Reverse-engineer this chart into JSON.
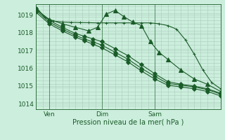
{
  "background_color": "#cceedd",
  "grid_color": "#aaccbb",
  "line_color": "#1a5c28",
  "xlim": [
    0,
    84
  ],
  "ylim": [
    1013.7,
    1019.6
  ],
  "yticks": [
    1014,
    1015,
    1016,
    1017,
    1018,
    1019
  ],
  "xtick_labels": [
    "Ven",
    "Dim",
    "Sam"
  ],
  "xtick_positions": [
    6,
    30,
    54
  ],
  "xlabel": "Pression niveau de la mer( hPa )",
  "vlines": [
    6,
    30,
    54
  ],
  "series": [
    {
      "x": [
        0,
        4,
        8,
        12,
        16,
        20,
        24,
        28,
        32,
        36,
        40,
        44,
        48,
        52,
        56,
        60,
        64,
        68,
        72,
        76,
        80,
        84
      ],
      "y": [
        1019.45,
        1018.85,
        1018.65,
        1018.6,
        1018.58,
        1018.57,
        1018.56,
        1018.55,
        1018.55,
        1018.55,
        1018.55,
        1018.55,
        1018.55,
        1018.55,
        1018.5,
        1018.4,
        1018.2,
        1017.6,
        1016.8,
        1015.9,
        1015.2,
        1014.85
      ],
      "marker": "+",
      "ms": 3
    },
    {
      "x": [
        0,
        6,
        12,
        18,
        24,
        28,
        32,
        36,
        40,
        44,
        48,
        52,
        56,
        60,
        66,
        72,
        78,
        84
      ],
      "y": [
        1019.3,
        1018.75,
        1018.5,
        1018.3,
        1018.1,
        1018.3,
        1019.05,
        1019.25,
        1018.9,
        1018.6,
        1018.4,
        1017.5,
        1016.9,
        1016.5,
        1015.9,
        1015.4,
        1015.1,
        1014.7
      ],
      "marker": "^",
      "ms": 4
    },
    {
      "x": [
        0,
        6,
        12,
        18,
        22,
        26,
        30,
        36,
        42,
        48,
        54,
        60,
        66,
        72,
        78,
        84
      ],
      "y": [
        1019.35,
        1018.7,
        1018.3,
        1017.95,
        1017.8,
        1017.65,
        1017.5,
        1017.1,
        1016.7,
        1016.2,
        1015.7,
        1015.25,
        1015.1,
        1015.0,
        1014.85,
        1014.6
      ],
      "marker": "D",
      "ms": 3
    },
    {
      "x": [
        0,
        6,
        12,
        18,
        22,
        26,
        30,
        36,
        42,
        48,
        54,
        60,
        66,
        72,
        78,
        84
      ],
      "y": [
        1019.25,
        1018.6,
        1018.2,
        1017.85,
        1017.65,
        1017.48,
        1017.3,
        1016.9,
        1016.5,
        1016.0,
        1015.55,
        1015.15,
        1015.05,
        1014.95,
        1014.8,
        1014.55
      ],
      "marker": "D",
      "ms": 3
    },
    {
      "x": [
        0,
        6,
        12,
        18,
        22,
        26,
        30,
        36,
        42,
        48,
        54,
        60,
        66,
        72,
        78,
        84
      ],
      "y": [
        1019.15,
        1018.5,
        1018.1,
        1017.75,
        1017.55,
        1017.35,
        1017.15,
        1016.75,
        1016.35,
        1015.85,
        1015.4,
        1015.05,
        1014.95,
        1014.85,
        1014.7,
        1014.45
      ],
      "marker": "D",
      "ms": 3
    }
  ]
}
